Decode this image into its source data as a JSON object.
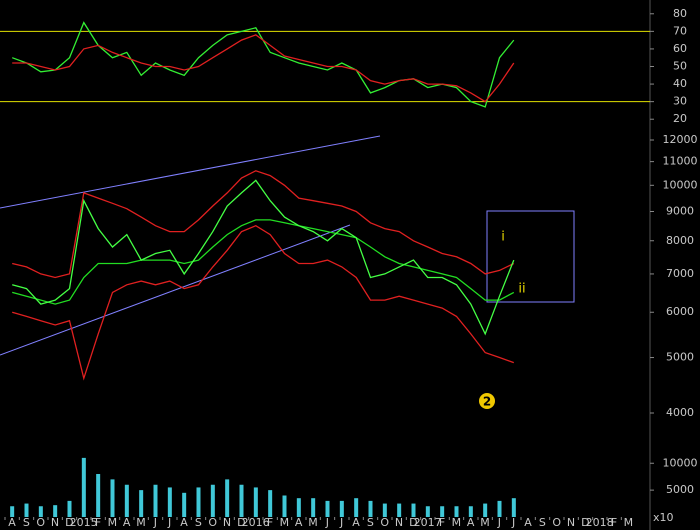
{
  "chart_data": [
    {
      "type": "line",
      "xlim": [
        0,
        45
      ],
      "ylim": [
        15,
        85
      ],
      "yticks": [
        20,
        30,
        40,
        50,
        60,
        70,
        80
      ],
      "reference_lines": [
        70,
        30
      ],
      "reference_color": "#e0e000",
      "x": [
        0.5,
        1.5,
        2.5,
        3.5,
        4.5,
        5.5,
        6.5,
        7.5,
        8.5,
        9.5,
        10.5,
        11.5,
        12.5,
        13.5,
        14.5,
        15.5,
        16.5,
        17.5,
        18.5,
        19.5,
        20.5,
        21.5,
        22.5,
        23.5,
        24.5,
        25.5,
        26.5,
        27.5,
        28.5,
        29.5,
        30.5,
        31.5,
        32.5,
        33.5,
        34.5,
        35.5
      ],
      "series": [
        {
          "color": "#33ee33",
          "values": [
            55,
            52,
            47,
            48,
            55,
            75,
            62,
            55,
            58,
            45,
            52,
            48,
            45,
            55,
            62,
            68,
            70,
            72,
            58,
            55,
            52,
            50,
            48,
            52,
            48,
            35,
            38,
            42,
            43,
            38,
            40,
            38,
            30,
            27,
            55,
            65
          ]
        },
        {
          "color": "#e02020",
          "values": [
            52,
            52,
            50,
            48,
            50,
            60,
            62,
            58,
            55,
            52,
            50,
            50,
            48,
            50,
            55,
            60,
            65,
            68,
            62,
            56,
            54,
            52,
            50,
            50,
            48,
            42,
            40,
            42,
            43,
            40,
            40,
            39,
            35,
            30,
            40,
            52
          ]
        }
      ]
    },
    {
      "type": "line",
      "log_scale": true,
      "xlim": [
        0,
        45
      ],
      "ylim": [
        4000,
        12000
      ],
      "yticks": [
        4000,
        5000,
        6000,
        7000,
        8000,
        9000,
        10000,
        11000,
        12000
      ],
      "x": [
        0.5,
        1.5,
        2.5,
        3.5,
        4.5,
        5.5,
        6.5,
        7.5,
        8.5,
        9.5,
        10.5,
        11.5,
        12.5,
        13.5,
        14.5,
        15.5,
        16.5,
        17.5,
        18.5,
        19.5,
        20.5,
        21.5,
        22.5,
        23.5,
        24.5,
        25.5,
        26.5,
        27.5,
        28.5,
        29.5,
        30.5,
        31.5,
        32.5,
        33.5,
        34.5,
        35.5
      ],
      "series": [
        {
          "color": "#e02020",
          "values": [
            7300,
            7200,
            7000,
            6900,
            7000,
            9700,
            9500,
            9300,
            9100,
            8800,
            8500,
            8300,
            8300,
            8700,
            9200,
            9700,
            10300,
            10600,
            10400,
            10000,
            9500,
            9400,
            9300,
            9200,
            9000,
            8600,
            8400,
            8300,
            8000,
            7800,
            7600,
            7500,
            7300,
            7000,
            7100,
            7300
          ]
        },
        {
          "color": "#e02020",
          "values": [
            6000,
            5900,
            5800,
            5700,
            5800,
            4600,
            5500,
            6500,
            6700,
            6800,
            6700,
            6800,
            6600,
            6700,
            7200,
            7700,
            8300,
            8500,
            8200,
            7600,
            7300,
            7300,
            7400,
            7200,
            6900,
            6300,
            6300,
            6400,
            6300,
            6200,
            6100,
            5900,
            5500,
            5100,
            5000,
            4900
          ]
        },
        {
          "color": "#22dd22",
          "values": [
            6500,
            6400,
            6300,
            6200,
            6300,
            6900,
            7300,
            7300,
            7300,
            7400,
            7400,
            7400,
            7300,
            7400,
            7800,
            8200,
            8500,
            8700,
            8700,
            8600,
            8500,
            8400,
            8300,
            8200,
            8100,
            7800,
            7500,
            7300,
            7200,
            7100,
            7000,
            6900,
            6600,
            6300,
            6300,
            6500
          ]
        },
        {
          "color": "#44ff44",
          "values": [
            6700,
            6600,
            6200,
            6300,
            6600,
            9400,
            8400,
            7800,
            8200,
            7400,
            7600,
            7700,
            7000,
            7600,
            8300,
            9200,
            9700,
            10200,
            9400,
            8800,
            8500,
            8300,
            8000,
            8400,
            8100,
            6900,
            7000,
            7200,
            7400,
            6900,
            6900,
            6700,
            6200,
            5500,
            6400,
            7400
          ]
        }
      ],
      "annotations": [
        "i",
        "ii",
        "2"
      ]
    },
    {
      "type": "bar",
      "xlim": [
        0,
        45
      ],
      "ylim": [
        0,
        16000
      ],
      "yticks": [
        5000,
        10000
      ],
      "axis_multiplier": "x10",
      "color": "#40c8d8",
      "x": [
        0.5,
        1.5,
        2.5,
        3.5,
        4.5,
        5.5,
        6.5,
        7.5,
        8.5,
        9.5,
        10.5,
        11.5,
        12.5,
        13.5,
        14.5,
        15.5,
        16.5,
        17.5,
        18.5,
        19.5,
        20.5,
        21.5,
        22.5,
        23.5,
        24.5,
        25.5,
        26.5,
        27.5,
        28.5,
        29.5,
        30.5,
        31.5,
        32.5,
        33.5,
        34.5,
        35.5
      ],
      "values": [
        2000,
        2500,
        2000,
        2200,
        3000,
        11000,
        8000,
        7000,
        6000,
        5000,
        6000,
        5500,
        4500,
        5500,
        6000,
        7000,
        6000,
        5500,
        5000,
        4000,
        3500,
        3500,
        3000,
        3000,
        3500,
        3000,
        2500,
        2500,
        2500,
        2000,
        2000,
        2000,
        2000,
        2500,
        3000,
        3500
      ],
      "xticks": [
        {
          "value": 0,
          "label": "A"
        },
        {
          "value": 1,
          "label": "S"
        },
        {
          "value": 2,
          "label": "O"
        },
        {
          "value": 3,
          "label": "N"
        },
        {
          "value": 4,
          "label": "D"
        },
        {
          "value": 5,
          "label": "2015"
        },
        {
          "value": 6,
          "label": "F"
        },
        {
          "value": 7,
          "label": "M"
        },
        {
          "value": 8,
          "label": "A"
        },
        {
          "value": 9,
          "label": "M"
        },
        {
          "value": 10,
          "label": "J"
        },
        {
          "value": 11,
          "label": "J"
        },
        {
          "value": 12,
          "label": "A"
        },
        {
          "value": 13,
          "label": "S"
        },
        {
          "value": 14,
          "label": "O"
        },
        {
          "value": 15,
          "label": "N"
        },
        {
          "value": 16,
          "label": "D"
        },
        {
          "value": 17,
          "label": "2016"
        },
        {
          "value": 18,
          "label": "F"
        },
        {
          "value": 19,
          "label": "M"
        },
        {
          "value": 20,
          "label": "A"
        },
        {
          "value": 21,
          "label": "M"
        },
        {
          "value": 22,
          "label": "J"
        },
        {
          "value": 23,
          "label": "J"
        },
        {
          "value": 24,
          "label": "A"
        },
        {
          "value": 25,
          "label": "S"
        },
        {
          "value": 26,
          "label": "O"
        },
        {
          "value": 27,
          "label": "N"
        },
        {
          "value": 28,
          "label": "D"
        },
        {
          "value": 29,
          "label": "2017"
        },
        {
          "value": 30,
          "label": "F"
        },
        {
          "value": 31,
          "label": "M"
        },
        {
          "value": 32,
          "label": "A"
        },
        {
          "value": 33,
          "label": "M"
        },
        {
          "value": 34,
          "label": "J"
        },
        {
          "value": 35,
          "label": "J"
        },
        {
          "value": 36,
          "label": "A"
        },
        {
          "value": 37,
          "label": "S"
        },
        {
          "value": 38,
          "label": "O"
        },
        {
          "value": 39,
          "label": "N"
        },
        {
          "value": 40,
          "label": "D"
        },
        {
          "value": 41,
          "label": "2018"
        },
        {
          "value": 42,
          "label": "F"
        },
        {
          "value": 43,
          "label": "M"
        }
      ]
    }
  ]
}
